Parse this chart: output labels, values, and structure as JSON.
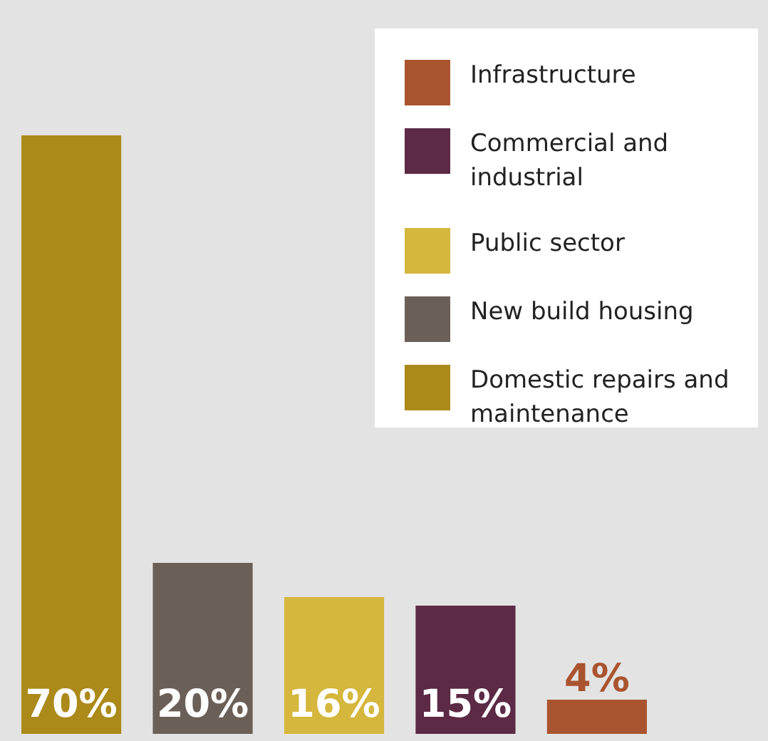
{
  "chart_data": {
    "type": "bar",
    "stacked": true,
    "categories": [
      null,
      null,
      null,
      null,
      null
    ],
    "series": [
      {
        "name": "Infrastructure",
        "color": "#a9542f",
        "values": [
          null,
          null,
          null,
          null,
          4
        ],
        "value_labels": [
          null,
          null,
          null,
          null,
          "4%"
        ]
      },
      {
        "name": "Commercial and industrial",
        "color": "#5c2a45",
        "values": [
          null,
          null,
          null,
          15,
          null
        ],
        "value_labels": [
          null,
          null,
          null,
          "15%",
          null
        ]
      },
      {
        "name": "Public sector",
        "color": "#d4b73c",
        "values": [
          null,
          null,
          16,
          null,
          null
        ],
        "value_labels": [
          null,
          null,
          "16%",
          null,
          null
        ]
      },
      {
        "name": "New build housing",
        "color": "#6b6058",
        "values": [
          null,
          20,
          null,
          null,
          null
        ],
        "value_labels": [
          null,
          "20%",
          null,
          null,
          null
        ]
      },
      {
        "name": "Domestic repairs and maintenance",
        "color": "#ab8a1a",
        "values": [
          70,
          null,
          null,
          null,
          null
        ],
        "value_labels": [
          "70%",
          null,
          null,
          null,
          null
        ]
      }
    ],
    "legend": "top right",
    "tick_labels": false,
    "grid": false
  }
}
